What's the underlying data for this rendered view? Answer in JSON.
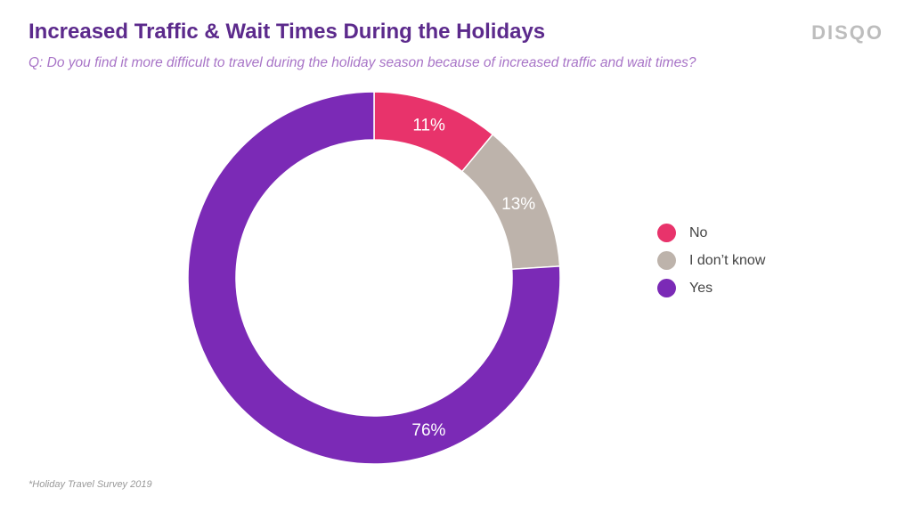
{
  "header": {
    "title": "Increased Traffic & Wait Times During the Holidays",
    "subtitle": "Q: Do you find it more difficult to travel during the holiday season because of increased traffic and wait times?",
    "brand": "DISQO"
  },
  "footnote": "*Holiday Travel Survey 2019",
  "chart_data": {
    "type": "pie",
    "variant": "donut",
    "title": "Increased Traffic & Wait Times During the Holidays",
    "legend_position": "right",
    "slices": [
      {
        "label": "No",
        "value": 11,
        "display": "11%",
        "color": "#e8336b"
      },
      {
        "label": "I don’t know",
        "value": 13,
        "display": "13%",
        "color": "#bdb3ab"
      },
      {
        "label": "Yes",
        "value": 76,
        "display": "76%",
        "color": "#7b2ab6"
      }
    ]
  }
}
